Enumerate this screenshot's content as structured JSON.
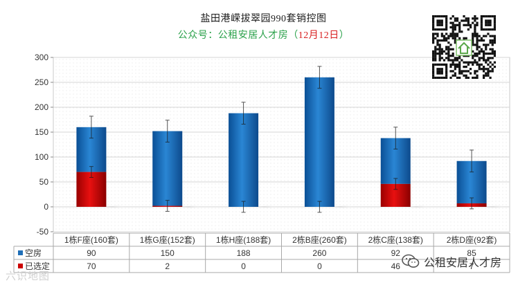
{
  "title": {
    "line1": "盐田港嵘拔翠园990套销控图",
    "line2_prefix": "公众号：公租安居人才房（",
    "line2_date": "12月12日",
    "line2_suffix": "）"
  },
  "watermarks": {
    "left": "六识地图",
    "wechat": "公租安居人才房"
  },
  "colors": {
    "vacant": "#1f6fb8",
    "selected": "#cc0000",
    "grid": "#dcdcdc",
    "title_green": "#2aa14a",
    "date_red": "#d81e1e"
  },
  "icons": {
    "qr": "qr-code-icon",
    "wechat": "wechat-icon",
    "home": "home-icon"
  },
  "chart_data": {
    "type": "bar",
    "stacked": true,
    "categories": [
      "1栋F座(160套)",
      "1栋G座(152套)",
      "1栋H座(188套)",
      "2栋B座(260套)",
      "2栋C座(138套)",
      "2栋D座(92套)"
    ],
    "series": [
      {
        "name": "已选定",
        "values": [
          70,
          2,
          0,
          0,
          46,
          7
        ],
        "color": "#cc0000"
      },
      {
        "name": "空房",
        "values": [
          90,
          150,
          188,
          260,
          92,
          85
        ],
        "color": "#1f6fb8"
      }
    ],
    "table_rows": [
      {
        "name": "空房",
        "values": [
          "90",
          "150",
          "188",
          "260",
          "92",
          "85"
        ]
      },
      {
        "name": "已选定",
        "values": [
          "70",
          "2",
          "0",
          "0",
          "46",
          "7"
        ]
      }
    ],
    "ylim": [
      -50,
      300
    ],
    "yticks": [
      300,
      250,
      200,
      150,
      100,
      50,
      0,
      -50
    ],
    "error_bars": true,
    "grid": true,
    "legend": "data-table"
  }
}
